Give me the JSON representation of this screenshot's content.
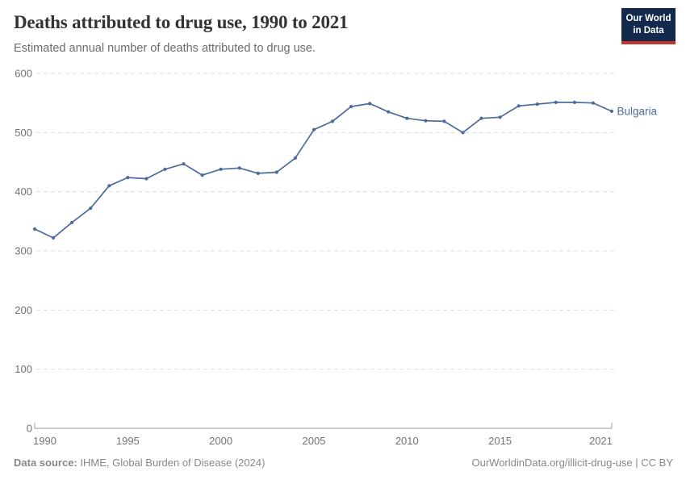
{
  "header": {
    "title": "Deaths attributed to drug use, 1990 to 2021",
    "subtitle": "Estimated annual number of deaths attributed to drug use.",
    "logo": {
      "line1": "Our World",
      "line2": "in Data"
    }
  },
  "chart_data": {
    "type": "line",
    "title": "Deaths attributed to drug use, 1990 to 2021",
    "x": [
      1990,
      1991,
      1992,
      1993,
      1994,
      1995,
      1996,
      1997,
      1998,
      1999,
      2000,
      2001,
      2002,
      2003,
      2004,
      2005,
      2006,
      2007,
      2008,
      2009,
      2010,
      2011,
      2012,
      2013,
      2014,
      2015,
      2016,
      2017,
      2018,
      2019,
      2020,
      2021
    ],
    "series": [
      {
        "name": "Bulgaria",
        "color": "#4C6A9C",
        "values": [
          337,
          322,
          348,
          372,
          410,
          424,
          422,
          438,
          447,
          428,
          438,
          440,
          431,
          433,
          457,
          505,
          519,
          544,
          549,
          535,
          524,
          520,
          519,
          500,
          524,
          526,
          545,
          548,
          551,
          551,
          550,
          536
        ]
      }
    ],
    "xlabel": "",
    "ylabel": "",
    "ylim": [
      0,
      600
    ],
    "xlim": [
      1990,
      2021
    ],
    "y_ticks": [
      0,
      100,
      200,
      300,
      400,
      500,
      600
    ],
    "x_ticks": [
      1990,
      1995,
      2000,
      2005,
      2010,
      2015,
      2021
    ],
    "grid": "horizontal-dashed",
    "legend_position": "inline-label-at-line-end"
  },
  "footer": {
    "source_label": "Data source:",
    "source_value": "IHME, Global Burden of Disease (2024)",
    "credit": "OurWorldinData.org/illicit-drug-use | CC BY"
  },
  "colors": {
    "line": "#4C6A9C",
    "logo_bg": "#142A4D",
    "logo_bar": "#C5332D",
    "grid": "#DDDDDD",
    "axis": "#9A9A9A",
    "tick_label": "#737373",
    "title": "#333333",
    "subtitle": "#6B6B6B",
    "footer": "#888888"
  }
}
